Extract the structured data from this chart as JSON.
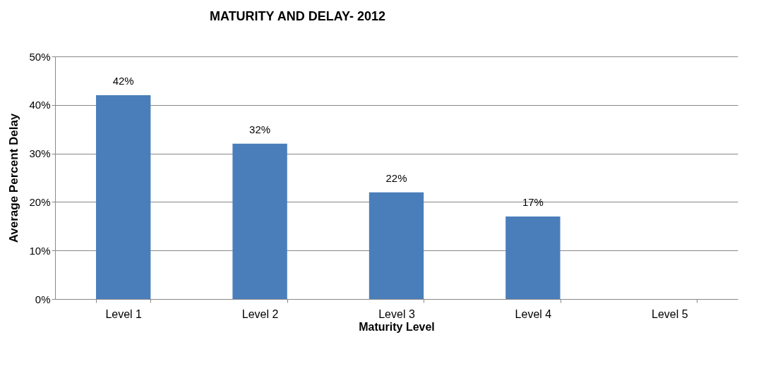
{
  "chart_data": {
    "type": "bar",
    "title": "MATURITY AND DELAY- 2012",
    "xlabel": "Maturity Level",
    "ylabel": "Average Percent Delay",
    "categories": [
      "Level 1",
      "Level 2",
      "Level 3",
      "Level 4",
      "Level 5"
    ],
    "values": [
      42,
      32,
      22,
      17,
      null
    ],
    "color": "#4a7ebb",
    "value_labels": [
      "42%",
      "32%",
      "22%",
      "17%",
      null
    ],
    "ylim": [
      0,
      50
    ],
    "yticks": [
      {
        "value": 0,
        "label": "0%"
      },
      {
        "value": 10,
        "label": "10%"
      },
      {
        "value": 20,
        "label": "20%"
      },
      {
        "value": 30,
        "label": "30%"
      },
      {
        "value": 40,
        "label": "40%"
      },
      {
        "value": 50,
        "label": "50%"
      }
    ],
    "grid": "y"
  }
}
